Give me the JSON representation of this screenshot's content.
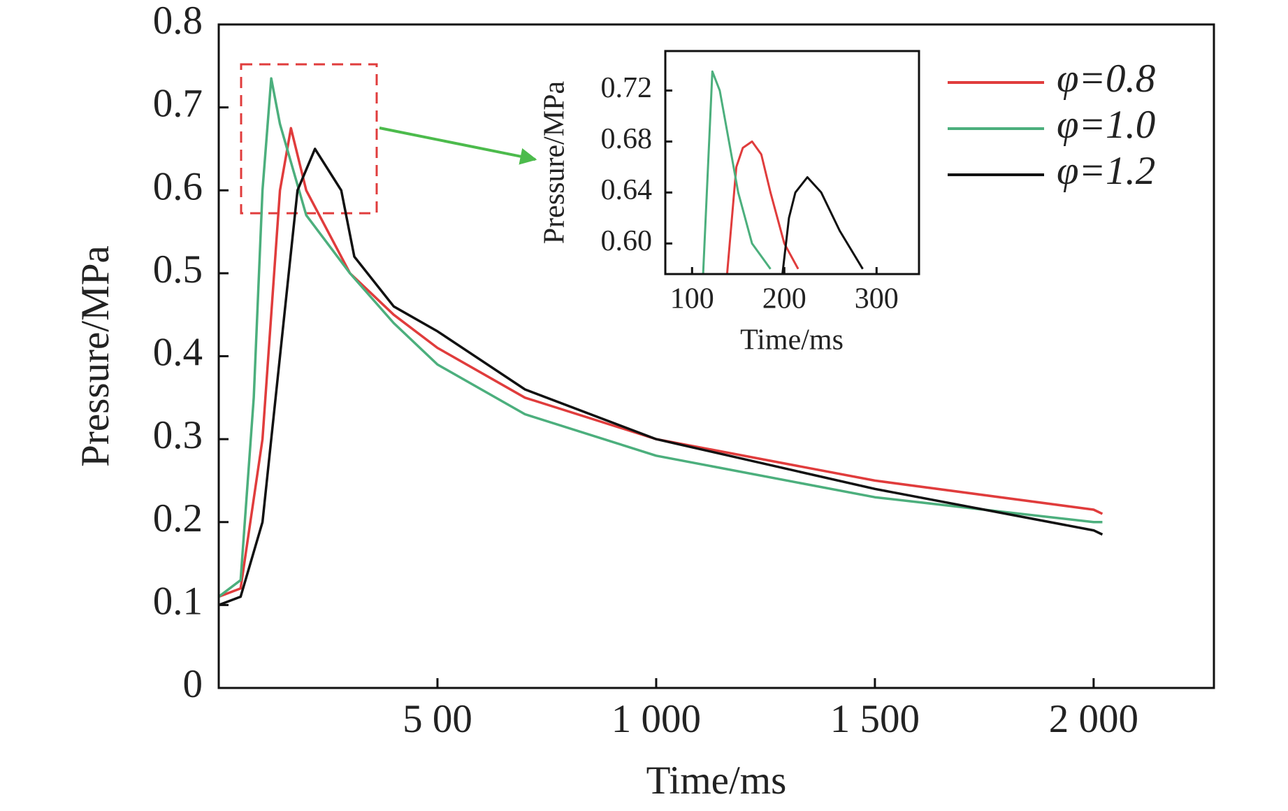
{
  "chart_data": [
    {
      "type": "line",
      "x_label": "Time/ms",
      "y_label": "Pressure/MPa",
      "xlim": [
        0,
        2275
      ],
      "ylim": [
        0,
        0.8
      ],
      "xticks": [
        {
          "value": 500,
          "label": "5 00"
        },
        {
          "value": 1000,
          "label": "1 000"
        },
        {
          "value": 1500,
          "label": "1 500"
        },
        {
          "value": 2000,
          "label": "2 000"
        }
      ],
      "yticks": [
        0,
        0.1,
        0.2,
        0.3,
        0.4,
        0.5,
        0.6,
        0.7,
        0.8
      ],
      "legend": "upper right",
      "series": [
        {
          "name": "φ=0.8",
          "color": "#e03c3c",
          "x": [
            0,
            50,
            100,
            140,
            165,
            200,
            300,
            400,
            500,
            700,
            1000,
            1500,
            2000,
            2020
          ],
          "values": [
            0.11,
            0.12,
            0.3,
            0.6,
            0.675,
            0.6,
            0.5,
            0.45,
            0.41,
            0.35,
            0.3,
            0.25,
            0.215,
            0.21
          ]
        },
        {
          "name": "φ=1.0",
          "color": "#4caf7d",
          "x": [
            0,
            50,
            80,
            100,
            120,
            140,
            200,
            300,
            400,
            500,
            700,
            1000,
            1500,
            2000,
            2020
          ],
          "values": [
            0.11,
            0.13,
            0.35,
            0.6,
            0.735,
            0.68,
            0.57,
            0.5,
            0.44,
            0.39,
            0.33,
            0.28,
            0.23,
            0.2,
            0.2
          ]
        },
        {
          "name": "φ=1.2",
          "color": "#111111",
          "x": [
            0,
            50,
            100,
            150,
            180,
            220,
            280,
            310,
            400,
            500,
            700,
            1000,
            1500,
            2000,
            2020
          ],
          "values": [
            0.1,
            0.11,
            0.2,
            0.45,
            0.6,
            0.65,
            0.6,
            0.52,
            0.46,
            0.43,
            0.36,
            0.3,
            0.24,
            0.19,
            0.185
          ]
        }
      ]
    },
    {
      "type": "line",
      "x_label": "Time/ms",
      "y_label": "Pressure/MPa",
      "xlim": [
        71,
        346
      ],
      "ylim": [
        0.576,
        0.751
      ],
      "xticks": [
        100,
        200,
        300
      ],
      "yticks": [
        0.72,
        0.68,
        0.64,
        {
          "value": 0.6,
          "label": "0.60"
        }
      ],
      "series": [
        {
          "color": "#e03c3c",
          "x": [
            138,
            148,
            155,
            165,
            175,
            185,
            200,
            215
          ],
          "values": [
            0.576,
            0.66,
            0.675,
            0.68,
            0.67,
            0.64,
            0.6,
            0.58
          ]
        },
        {
          "color": "#4caf7d",
          "x": [
            112,
            122,
            130,
            140,
            150,
            165,
            185
          ],
          "values": [
            0.576,
            0.735,
            0.72,
            0.68,
            0.64,
            0.6,
            0.58
          ]
        },
        {
          "color": "#111111",
          "x": [
            198,
            205,
            212,
            225,
            240,
            260,
            285
          ],
          "values": [
            0.576,
            0.62,
            0.64,
            0.652,
            0.64,
            0.61,
            0.58
          ]
        }
      ]
    }
  ]
}
